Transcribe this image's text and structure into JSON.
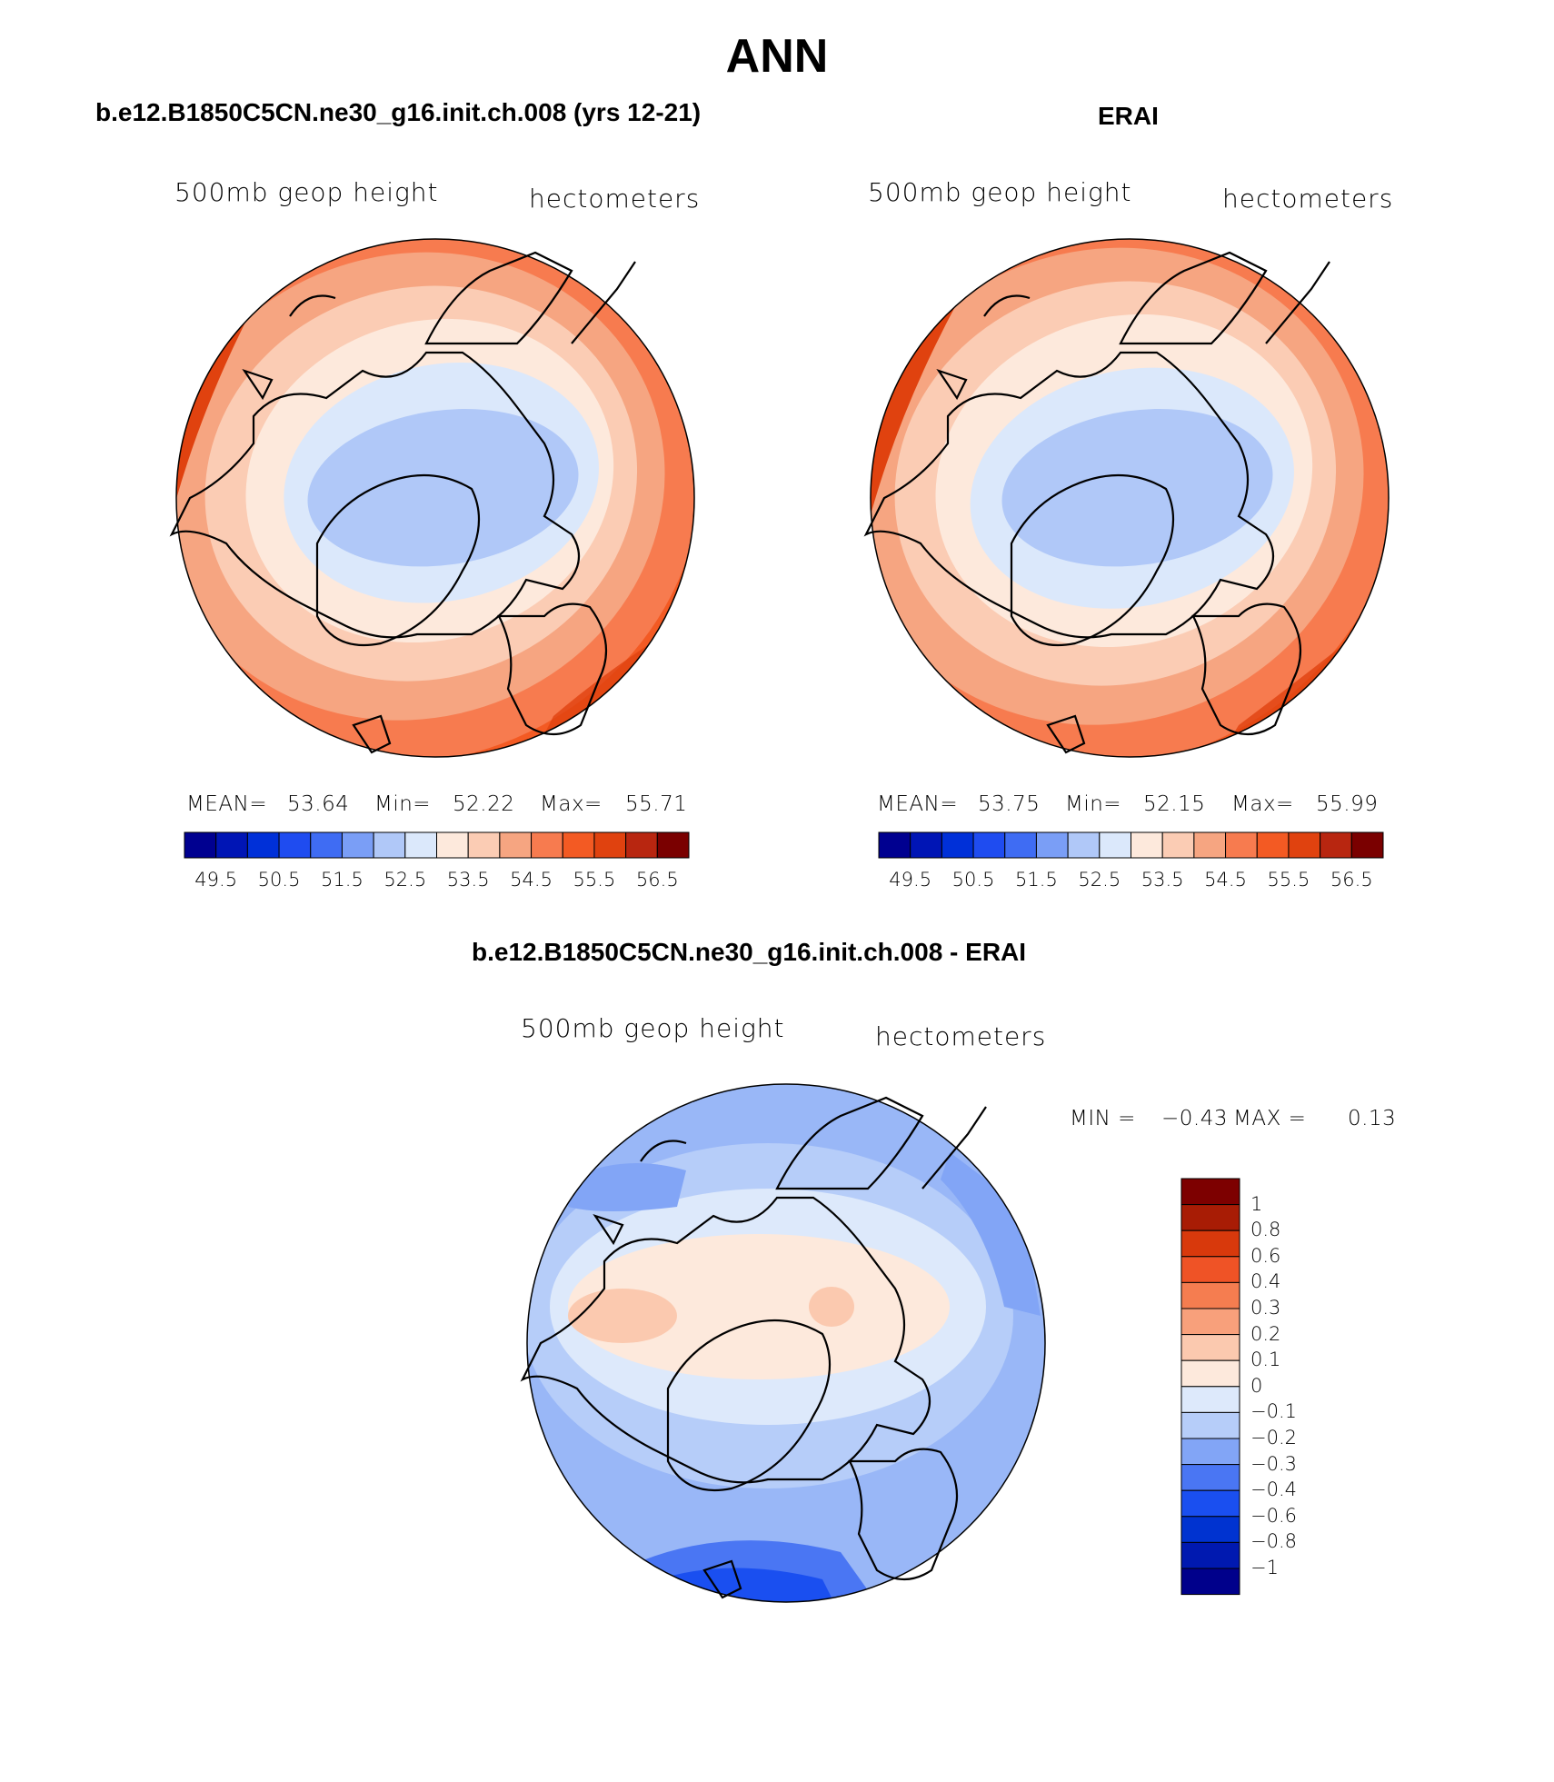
{
  "header": {
    "title": "ANN"
  },
  "colors": {
    "abs_bar": [
      "#000090",
      "#0015b5",
      "#0030d8",
      "#1f4cf0",
      "#3f6cf3",
      "#7a9ef6",
      "#b0c8f8",
      "#dbe8fb",
      "#fde9dc",
      "#fbccb4",
      "#f6a581",
      "#f77b4f",
      "#f35a23",
      "#e0420f",
      "#b82610",
      "#7a0000"
    ],
    "diff_bar": [
      "#00008b",
      "#0019b0",
      "#0033d0",
      "#1a4ff0",
      "#4a76f3",
      "#82a5f6",
      "#b6cdf9",
      "#dde9fb",
      "#fde9dc",
      "#fbc9af",
      "#f8a07b",
      "#f57d50",
      "#ef5326",
      "#d8390c",
      "#a81c05",
      "#7d0000"
    ]
  },
  "panels": [
    {
      "id": "model",
      "case_title": "b.e12.B1850C5CN.ne30_g16.init.ch.008 (yrs 12-21)",
      "variable": "500mb geop height",
      "units": "hectometers",
      "mean_label": "MEAN=",
      "mean_value": "53.64",
      "min_label": "Min=",
      "min_value": "52.22",
      "max_label": "Max=",
      "max_value": "55.71",
      "ticks": [
        "49.5",
        "50.5",
        "51.5",
        "52.5",
        "53.5",
        "54.5",
        "55.5",
        "56.5"
      ]
    },
    {
      "id": "obs",
      "case_title": "ERAI",
      "variable": "500mb geop height",
      "units": "hectometers",
      "mean_label": "MEAN=",
      "mean_value": "53.75",
      "min_label": "Min=",
      "min_value": "52.15",
      "max_label": "Max=",
      "max_value": "55.99",
      "ticks": [
        "49.5",
        "50.5",
        "51.5",
        "52.5",
        "53.5",
        "54.5",
        "55.5",
        "56.5"
      ]
    }
  ],
  "difference": {
    "case_title": "b.e12.B1850C5CN.ne30_g16.init.ch.008 - ERAI",
    "variable": "500mb geop height",
    "units": "hectometers",
    "min_label": "MIN =",
    "min_value": "−0.43",
    "max_label": "MAX =",
    "max_value": "0.13",
    "ticks": [
      "1",
      "0.8",
      "0.6",
      "0.4",
      "0.3",
      "0.2",
      "0.1",
      "0",
      "−0.1",
      "−0.2",
      "−0.3",
      "−0.4",
      "−0.6",
      "−0.8",
      "−1"
    ]
  }
}
